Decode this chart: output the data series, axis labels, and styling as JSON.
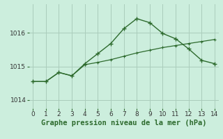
{
  "line1_x": [
    0,
    1,
    2,
    3,
    4,
    5,
    6,
    7,
    8,
    9,
    10,
    11,
    12,
    13,
    14
  ],
  "line1_y": [
    1014.55,
    1014.55,
    1014.82,
    1014.72,
    1015.08,
    1015.38,
    1015.68,
    1016.12,
    1016.42,
    1016.3,
    1015.98,
    1015.82,
    1015.52,
    1015.18,
    1015.08
  ],
  "line2_x": [
    0,
    1,
    2,
    3,
    4,
    5,
    6,
    7,
    8,
    9,
    10,
    11,
    12,
    13,
    14
  ],
  "line2_y": [
    1014.55,
    1014.55,
    1014.82,
    1014.72,
    1015.05,
    1015.12,
    1015.2,
    1015.3,
    1015.4,
    1015.48,
    1015.56,
    1015.62,
    1015.68,
    1015.74,
    1015.8
  ],
  "xlim": [
    -0.3,
    14.3
  ],
  "ylim": [
    1013.75,
    1016.85
  ],
  "yticks": [
    1014,
    1015,
    1016
  ],
  "xticks": [
    0,
    1,
    2,
    3,
    4,
    5,
    6,
    7,
    8,
    9,
    10,
    11,
    12,
    13,
    14
  ],
  "line_color": "#2d6a2d",
  "bg_color": "#cceedd",
  "grid_color": "#aaccbb",
  "xlabel": "Graphe pression niveau de la mer (hPa)",
  "xlabel_fontsize": 7.5,
  "tick_fontsize": 6.5,
  "marker": "+"
}
